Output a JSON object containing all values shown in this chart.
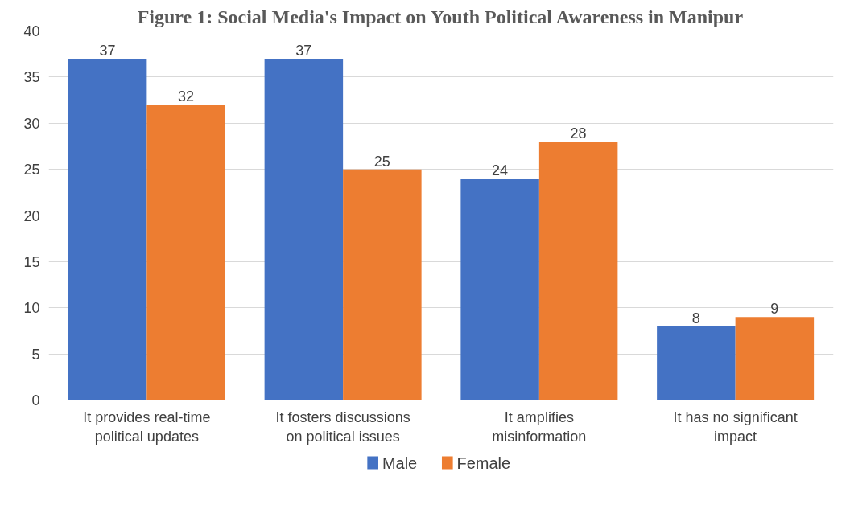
{
  "chart_data": {
    "type": "bar",
    "title": "Figure 1: Social Media's Impact on Youth Political Awareness in Manipur",
    "categories": [
      "It provides real-time political updates",
      "It fosters discussions on political issues",
      "It amplifies misinformation",
      "It has no significant impact"
    ],
    "series": [
      {
        "name": "Male",
        "color": "#4472c4",
        "values": [
          37,
          37,
          24,
          8
        ]
      },
      {
        "name": "Female",
        "color": "#ed7d31",
        "values": [
          32,
          25,
          28,
          9
        ]
      }
    ],
    "ylim": [
      0,
      40
    ],
    "yticks": [
      0,
      5,
      10,
      15,
      20,
      25,
      30,
      35,
      40
    ],
    "grid": "y",
    "legend": "bottom",
    "data_labels": true
  }
}
